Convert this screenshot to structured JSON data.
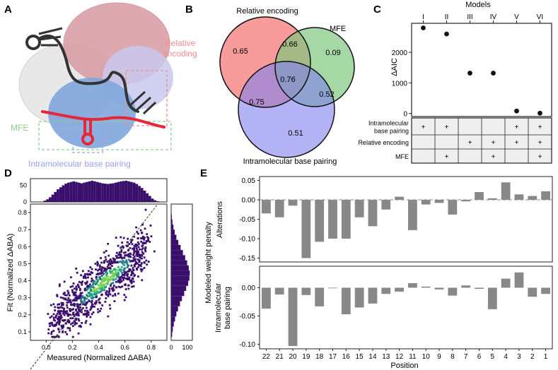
{
  "panel_letters": {
    "a": "A",
    "b": "B",
    "c": "C",
    "d": "D",
    "e": "E"
  },
  "colors": {
    "red": "#e8263a",
    "purple": "#3a0f6b",
    "gray": "#888888",
    "pink": "#f08c8c",
    "green": "#8ecf8e",
    "blue": "#9aa0f0"
  },
  "panel_a": {
    "label_relative": [
      "Relative",
      "encoding"
    ],
    "label_mfe": "MFE",
    "label_intra": "Intramolecular base pairing"
  },
  "panel_b": {
    "label_relative": "Relative encoding",
    "label_mfe": "MFE",
    "label_intra": "Intramolecular base pairing",
    "regions": {
      "relative_only": "0.65",
      "relative_mfe": "0.66",
      "mfe_only": "0.09",
      "all_three": "0.76",
      "relative_intra": "0.75",
      "mfe_intra": "0.52",
      "intra_only": "0.51"
    }
  },
  "chart_data": [
    {
      "panel": "C",
      "type": "scatter",
      "title": "Models",
      "categories": [
        "I",
        "II",
        "III",
        "IV",
        "V",
        "VI"
      ],
      "values": [
        2800,
        2600,
        1320,
        1320,
        80,
        10
      ],
      "ylabel": "ΔAIC",
      "ylim": [
        -100,
        2950
      ],
      "yticks": [
        "0",
        "1000",
        "2000"
      ],
      "table_rows": [
        {
          "label": [
            "Intramolecular",
            "base pairing"
          ],
          "marks": [
            "+",
            "+",
            "",
            "",
            "+",
            "+"
          ]
        },
        {
          "label": [
            "Relative encoding"
          ],
          "marks": [
            "",
            "",
            "+",
            "+",
            "+",
            "+"
          ]
        },
        {
          "label": [
            "MFE"
          ],
          "marks": [
            "",
            "+",
            "",
            "+",
            "",
            "+"
          ]
        }
      ]
    },
    {
      "panel": "D",
      "type": "scatter",
      "xlabel": "Measured (Normalized ΔABA)",
      "ylabel": "Fit (Normalized ΔABA)",
      "xticks": [
        "0.0",
        "0.2",
        "0.4",
        "0.6",
        "0.8"
      ],
      "yticks": [
        "0.1",
        "0.2",
        "0.3",
        "0.4",
        "0.5",
        "0.6",
        "0.7",
        "0.8"
      ],
      "xlim": [
        -0.12,
        0.92
      ],
      "ylim": [
        0.05,
        0.85
      ],
      "top_hist_ticks": [
        "0",
        "50"
      ],
      "right_hist_ticks": [
        "0",
        "100"
      ],
      "top_hist": [
        4,
        8,
        14,
        22,
        30,
        38,
        44,
        50,
        55,
        58,
        60,
        62,
        60,
        58,
        56,
        58,
        60,
        62,
        64,
        62,
        60,
        58,
        56,
        55,
        54,
        55,
        56,
        58,
        60,
        62,
        63,
        64,
        62,
        60,
        58,
        54,
        48,
        42,
        34,
        26,
        18,
        10,
        5,
        2
      ],
      "right_hist": [
        6,
        10,
        16,
        24,
        32,
        42,
        54,
        66,
        80,
        92,
        104,
        112,
        114,
        108,
        98,
        86,
        72,
        58,
        44,
        32,
        22,
        14,
        8,
        4,
        2
      ]
    },
    {
      "panel": "E",
      "type": "bar",
      "xlabel": "Position",
      "ylabel": "Modeled weight penalty",
      "categories": [
        "22",
        "21",
        "20",
        "19",
        "18",
        "17",
        "16",
        "15",
        "14",
        "13",
        "12",
        "11",
        "10",
        "9",
        "8",
        "7",
        "6",
        "5",
        "4",
        "3",
        "2",
        "1"
      ],
      "series": [
        {
          "name": "Alterations",
          "values": [
            -0.035,
            -0.045,
            -0.015,
            -0.15,
            -0.108,
            -0.1,
            -0.1,
            -0.045,
            -0.068,
            -0.025,
            0.008,
            -0.078,
            -0.012,
            -0.008,
            -0.038,
            -0.004,
            0.02,
            0.004,
            0.045,
            0.014,
            0.01,
            0.022
          ],
          "ylim": [
            -0.16,
            0.06
          ],
          "yticks": [
            "0.05",
            "0.00",
            "-0.05",
            "-0.10",
            "-0.15"
          ]
        },
        {
          "name": "Intramolecular base pairing",
          "values": [
            -0.037,
            -0.012,
            -0.103,
            -0.013,
            -0.033,
            -0.001,
            -0.047,
            -0.035,
            -0.028,
            -0.011,
            -0.007,
            0.008,
            0.002,
            -0.003,
            -0.014,
            0.004,
            -0.002,
            -0.038,
            0.016,
            0.027,
            -0.016,
            -0.011
          ],
          "ylim": [
            -0.108,
            0.038
          ],
          "yticks": [
            "0.00",
            "-0.05",
            "-0.10"
          ]
        }
      ],
      "series_labels": [
        [
          "Alterations"
        ],
        [
          "Intramolecular",
          "base pairing"
        ]
      ]
    }
  ]
}
